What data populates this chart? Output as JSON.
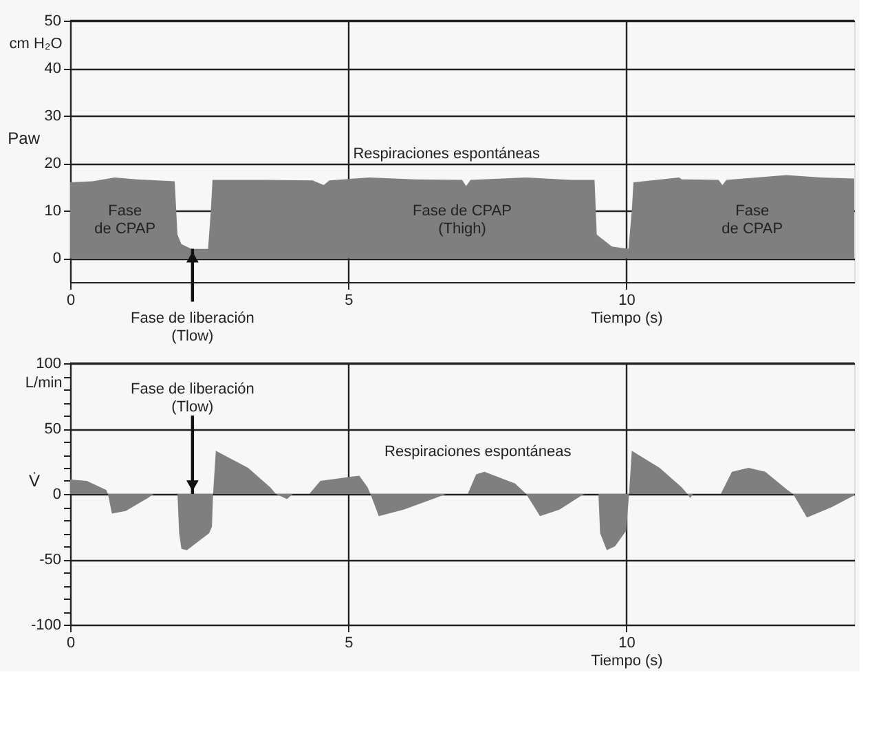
{
  "chart_data": [
    {
      "type": "area",
      "ylabel": "Paw",
      "xlabel": "Tiempo (s)",
      "grid": true,
      "xlim": [
        0,
        14.1
      ],
      "ylim": [
        -5,
        50
      ],
      "xticks": [
        0,
        5,
        10
      ],
      "yticks": [
        0,
        10,
        20,
        30,
        40,
        50
      ],
      "series": [
        {
          "color": "#7f7f7f",
          "x": [
            0,
            0.4,
            0.8,
            1.2,
            1.88,
            1.93,
            2.0,
            2.18,
            2.48,
            2.53,
            2.56,
            3.5,
            4.36,
            4.56,
            4.66,
            5.38,
            6.2,
            7.05,
            7.12,
            7.2,
            8.2,
            9.0,
            9.43,
            9.47,
            9.74,
            10.04,
            10.1,
            10.13,
            10.95,
            11.0,
            11.66,
            11.73,
            11.8,
            12.88,
            13.5,
            14.1
          ],
          "values": [
            16,
            16.2,
            17,
            16.6,
            16.2,
            5,
            3,
            2,
            2,
            10,
            16.5,
            16.5,
            16.4,
            15.4,
            16.4,
            17,
            16.6,
            16.5,
            15.2,
            16.5,
            17,
            16.5,
            16.5,
            5,
            2.5,
            2,
            10,
            16,
            17,
            16.6,
            16.5,
            15.4,
            16.5,
            17.5,
            17,
            16.8
          ]
        }
      ],
      "annotations": [
        "cm H₂O",
        "Respiraciones espontáneas",
        "Fase\nde CPAP",
        "Fase  de CPAP\n(Thigh)",
        "Fase\nde CPAP",
        {
          "text": "Fase de liberación\n(Tlow)",
          "x": 2.2,
          "y": 2
        }
      ]
    },
    {
      "type": "area",
      "ylabel": "V̇",
      "xlabel": "Tiempo (s)",
      "grid": true,
      "xlim": [
        0,
        14.1
      ],
      "ylim": [
        -100,
        100
      ],
      "xticks": [
        0,
        5,
        10
      ],
      "yticks": [
        -100,
        {
          "value": -90,
          "label": null
        },
        {
          "value": -80,
          "label": null
        },
        {
          "value": -70,
          "label": null
        },
        {
          "value": -60,
          "label": null
        },
        -50,
        {
          "value": -40,
          "label": null
        },
        {
          "value": -30,
          "label": null
        },
        {
          "value": -20,
          "label": null
        },
        {
          "value": -10,
          "label": null
        },
        0,
        {
          "value": 10,
          "label": null
        },
        {
          "value": 20,
          "label": null
        },
        {
          "value": 30,
          "label": null
        },
        {
          "value": 40,
          "label": null
        },
        50,
        {
          "value": 60,
          "label": null
        },
        {
          "value": 70,
          "label": null
        },
        {
          "value": 80,
          "label": null
        },
        {
          "value": 90,
          "label": null
        },
        100
      ],
      "series": [
        {
          "color": "#7f7f7f",
          "x": [
            0,
            0.3,
            0.65,
            0.68,
            0.75,
            1.0,
            1.4,
            1.5,
            1.93,
            1.96,
            2.0,
            2.1,
            2.5,
            2.55,
            2.57,
            2.62,
            3.2,
            3.6,
            3.7,
            3.9,
            4.0,
            4.3,
            4.5,
            5.2,
            5.35,
            5.4,
            5.55,
            6.0,
            6.7,
            6.75,
            7.15,
            7.3,
            7.45,
            8.0,
            8.2,
            8.45,
            8.8,
            9.2,
            9.25,
            9.5,
            9.53,
            9.65,
            9.8,
            10.0,
            10.05,
            10.1,
            10.6,
            11.0,
            11.1,
            11.15,
            11.2,
            11.7,
            11.9,
            12.2,
            12.5,
            12.9,
            13.0,
            13.25,
            13.7,
            14.1
          ],
          "values": [
            11,
            10,
            3,
            0,
            -15,
            -13,
            -3,
            0,
            0,
            -30,
            -42,
            -43,
            -30,
            -25,
            0,
            33,
            20,
            5,
            0,
            -4,
            0,
            0,
            10,
            14,
            5,
            0,
            -17,
            -12,
            -1,
            0,
            0,
            15,
            17,
            8,
            0,
            -17,
            -12,
            -1,
            0,
            0,
            -30,
            -43,
            -40,
            -28,
            0,
            33,
            20,
            5,
            0,
            -3,
            0,
            0,
            17,
            20,
            17,
            3,
            0,
            -18,
            -10,
            -1
          ]
        }
      ],
      "annotations": [
        "L/min",
        "Respiraciones espontáneas",
        {
          "text": "Fase de liberación\n(Tlow)",
          "x": 2.2,
          "y": 0
        }
      ]
    }
  ]
}
